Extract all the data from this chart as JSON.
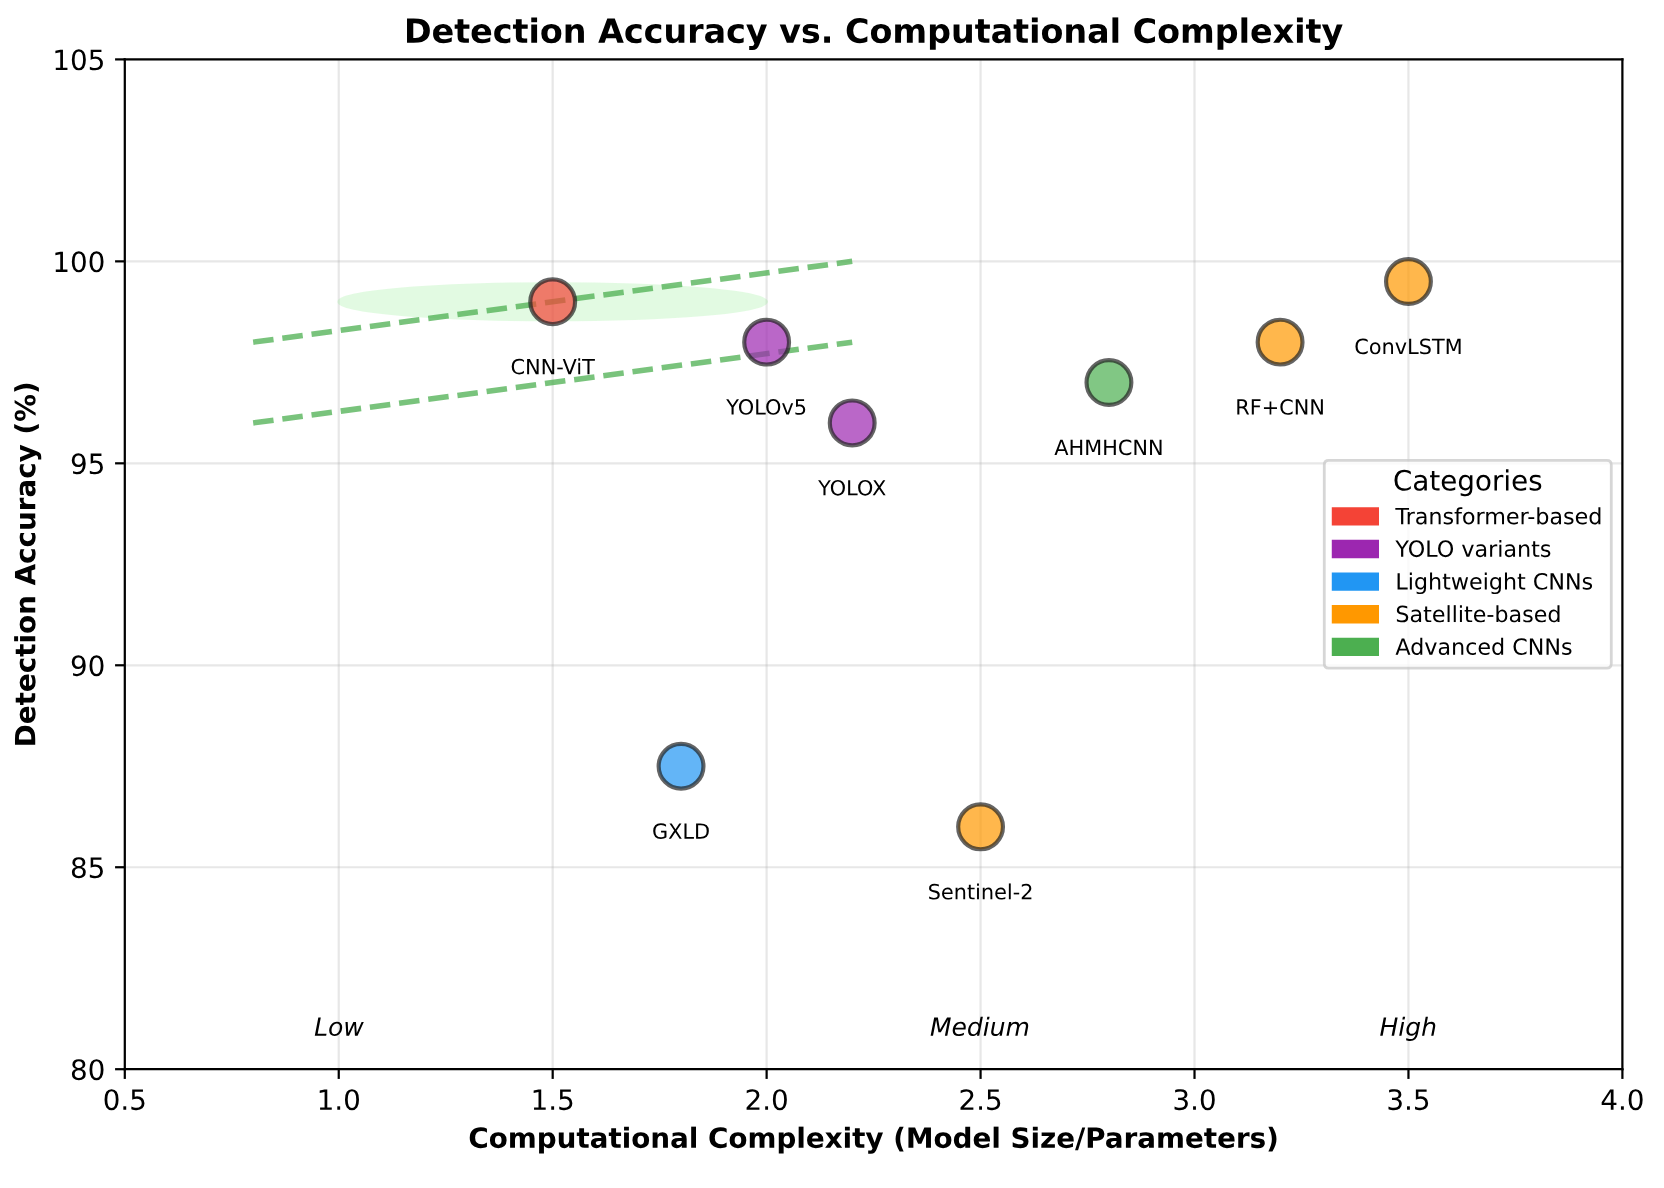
{
  "chart_data": {
    "type": "scatter",
    "title": "Detection Accuracy vs. Computational Complexity",
    "xlabel": "Computational Complexity (Model Size/Parameters)",
    "ylabel": "Detection Accuracy (%)",
    "legend_title": "Categories",
    "series": [
      {
        "name": "Transformer-based",
        "color": "#f44336",
        "x": [
          1.5
        ],
        "values": [
          99
        ]
      },
      {
        "name": "YOLO variants",
        "color": "#9c27b0",
        "x": [
          2.0,
          2.2
        ],
        "values": [
          98,
          96
        ]
      },
      {
        "name": "Lightweight CNNs",
        "color": "#2196f3",
        "x": [
          1.8
        ],
        "values": [
          87.5
        ]
      },
      {
        "name": "Satellite-based",
        "color": "#ff9800",
        "x": [
          2.5,
          3.2,
          3.5
        ],
        "values": [
          86,
          98,
          99.5
        ]
      },
      {
        "name": "Advanced CNNs",
        "color": "#4caf50",
        "x": [
          2.8
        ],
        "values": [
          97
        ]
      },
      {
        "type": "line",
        "color": "#4caf50",
        "line_style": "dashed",
        "marker": "none",
        "x": [
          0.8,
          2.2
        ],
        "values": [
          98,
          100
        ]
      },
      {
        "type": "line",
        "color": "#4caf50",
        "line_style": "dashed",
        "marker": "none",
        "x": [
          0.8,
          2.2
        ],
        "values": [
          96,
          98
        ]
      }
    ],
    "annotations": [
      {
        "text": "CNN-ViT",
        "x": 1.5,
        "y": 99
      },
      {
        "text": "YOLOv5",
        "x": 2.0,
        "y": 98
      },
      {
        "text": "YOLOX",
        "x": 2.2,
        "y": 96
      },
      {
        "text": "GXLD",
        "x": 1.8,
        "y": 87.5
      },
      {
        "text": "Sentinel-2",
        "x": 2.5,
        "y": 86
      },
      {
        "text": "RF+CNN",
        "x": 3.2,
        "y": 98
      },
      {
        "text": "ConvLSTM",
        "x": 3.5,
        "y": 99.5
      },
      {
        "text": "AHMHCNN",
        "x": 2.8,
        "y": 97
      },
      "Low",
      "Medium",
      "High"
    ],
    "marker": "circle",
    "xlim": [
      0.5,
      4.0
    ],
    "ylim": [
      80,
      105
    ],
    "xticks": [
      0.5,
      {
        "value": 1,
        "label": "1.0"
      },
      1.5,
      {
        "value": 2,
        "label": "2.0"
      },
      2.5,
      {
        "value": 3,
        "label": "3.0"
      },
      3.5,
      {
        "value": 4,
        "label": "4.0"
      }
    ],
    "yticks": [
      80,
      85,
      90,
      95,
      100,
      105
    ],
    "grid": true,
    "legend": "center right"
  }
}
